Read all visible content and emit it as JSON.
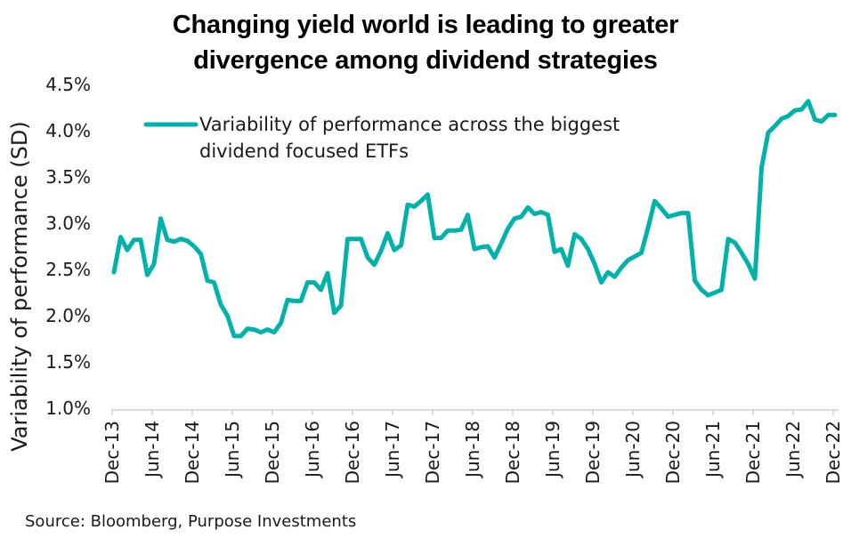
{
  "chart_data": {
    "type": "line",
    "title_lines": [
      "Changing yield world is leading to greater",
      "divergence among dividend strategies"
    ],
    "xlabel": "",
    "ylabel": "Variability of performance (SD)",
    "ylim": [
      1.0,
      4.5
    ],
    "yticks": [
      "1.0%",
      "1.5%",
      "2.0%",
      "2.5%",
      "3.0%",
      "3.5%",
      "4.0%",
      "4.5%"
    ],
    "ytick_values": [
      1.0,
      1.5,
      2.0,
      2.5,
      3.0,
      3.5,
      4.0,
      4.5
    ],
    "xtick_labels": [
      "Dec-13",
      "Jun-14",
      "Dec-14",
      "Jun-15",
      "Dec-15",
      "Jun-16",
      "Dec-16",
      "Jun-17",
      "Dec-17",
      "Jun-18",
      "Dec-18",
      "Jun-19",
      "Dec-19",
      "Jun-20",
      "Dec-20",
      "Jun-21",
      "Dec-21",
      "Jun-22",
      "Dec-22"
    ],
    "x_start": "Dec-13",
    "x_end": "Dec-22",
    "frequency": "monthly",
    "grid": false,
    "legend_position": "top-left",
    "series": [
      {
        "name": "Variability of performance across the biggest dividend focused ETFs",
        "legend_lines": [
          "Variability of performance across the biggest",
          "dividend focused ETFs"
        ],
        "color": "#00b2a9",
        "values": [
          2.47,
          2.85,
          2.71,
          2.82,
          2.82,
          2.44,
          2.56,
          3.05,
          2.82,
          2.8,
          2.83,
          2.81,
          2.75,
          2.67,
          2.38,
          2.36,
          2.12,
          2.0,
          1.78,
          1.78,
          1.86,
          1.85,
          1.82,
          1.85,
          1.82,
          1.92,
          2.17,
          2.16,
          2.16,
          2.36,
          2.36,
          2.28,
          2.46,
          2.03,
          2.11,
          2.83,
          2.83,
          2.83,
          2.63,
          2.55,
          2.7,
          2.89,
          2.71,
          2.76,
          3.2,
          3.18,
          3.24,
          3.31,
          2.84,
          2.84,
          2.92,
          2.92,
          2.93,
          3.09,
          2.72,
          2.74,
          2.75,
          2.63,
          2.78,
          2.94,
          3.05,
          3.07,
          3.17,
          3.1,
          3.12,
          3.09,
          2.69,
          2.72,
          2.54,
          2.88,
          2.83,
          2.72,
          2.56,
          2.36,
          2.47,
          2.42,
          2.52,
          2.6,
          2.64,
          2.68,
          2.95,
          3.24,
          3.16,
          3.07,
          3.09,
          3.11,
          3.11,
          2.38,
          2.28,
          2.22,
          2.25,
          2.28,
          2.83,
          2.79,
          2.68,
          2.56,
          2.4,
          3.6,
          3.98,
          4.05,
          4.13,
          4.16,
          4.22,
          4.23,
          4.32,
          4.12,
          4.1,
          4.17,
          4.17
        ]
      }
    ],
    "source": "Source: Bloomberg, Purpose Investments"
  }
}
